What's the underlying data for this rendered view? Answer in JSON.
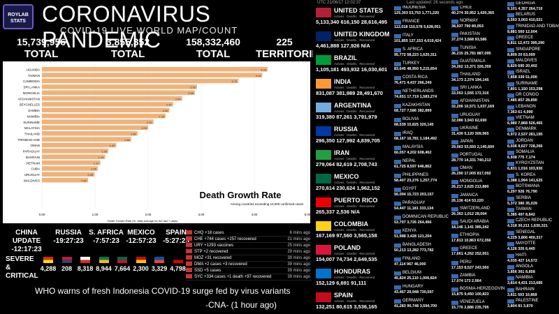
{
  "header": {
    "logo": "ROYLAB STATS",
    "title": "CORONAVIRUS PANDEMIC",
    "subtitle": "COVID-19 LIVE WORLD MAP/COUNT"
  },
  "stats": [
    {
      "value": "15,739,956",
      "label": "TOTAL ACTIVES"
    },
    {
      "value": "3,855,352",
      "label": "TOTAL DEATHS"
    },
    {
      "value": "158,332,460",
      "label": "TOTAL RECOVERED"
    },
    {
      "value": "225",
      "label": "TERRITORIES"
    }
  ],
  "chart_data": {
    "type": "bar",
    "title": "Death Growth Rate",
    "subtitle": "Among countries exceeding 10,000 confirmed cases",
    "xlabel": "Death Growth Rate (%, daily average for the last 7 days)",
    "xlim": [
      0,
      5
    ],
    "xticks": [
      "0.00",
      "1.00",
      "2.00",
      "3.00",
      "4.00",
      "5.00"
    ],
    "categories": [
      "UGANDA",
      "TAIWAN",
      "CAMBODIA",
      "SRI LANKA",
      "MONGOLIA",
      "AFGHANISTAN",
      "SEYCHELLES",
      "ZAMBIA",
      "NAMIBIA",
      "SURINAME",
      "MALAYSIA",
      "THAILAND",
      "TRINIDAD AND",
      "OMAN",
      "PARAGUAY",
      "BAHRAIN",
      "VIETNAM",
      "CUBA",
      "URUGUAY",
      "MALDIVES"
    ],
    "values": [
      4.25,
      4.15,
      3.7,
      2.92,
      2.88,
      2.64,
      2.47,
      2.4,
      2.33,
      2.1,
      2.0,
      1.8,
      1.68,
      1.4,
      1.25,
      1.19,
      1.1,
      1.05,
      0.99,
      0.87
    ],
    "colors": {
      "bar": "#f0b27a",
      "bg": "#ffffff",
      "text": "#000000"
    }
  },
  "updates": {
    "columns": [
      {
        "name": "CHINA UPDATE",
        "time": "-12:17:23"
      },
      {
        "name": "RUSSIA",
        "time": "-19:27:23"
      },
      {
        "name": "S. AFRICA",
        "time": "-7:57:23"
      },
      {
        "name": "MEXICO",
        "time": "-12:57:23"
      },
      {
        "name": "SPAIN",
        "time": "-5:27:23"
      }
    ],
    "critical_label": "SEVERE & CRITICAL",
    "critical_values": [
      "4,288",
      "208",
      "8,318",
      "8,944",
      "7,664",
      "2,300",
      "3,329",
      "4,798"
    ],
    "feed": [
      {
        "text": "CHQ +18 cases",
        "ago": "6 mins ago"
      },
      {
        "text": "CHE +744 cases +257 recovered",
        "ago": "21 mins ago"
      },
      {
        "text": "URY +1293 vaccines",
        "ago": "25 mins ago"
      },
      {
        "text": "STP +2 recovered",
        "ago": "29 mins ago"
      },
      {
        "text": "MOZ +31 recovered",
        "ago": "39 mins ago"
      },
      {
        "text": "DMA +2 cases +3 recovered",
        "ago": "39 mins ago"
      },
      {
        "text": "SSD +5 cases",
        "ago": "39 mins ago"
      },
      {
        "text": "SYC +334 cases +1 death +97 recovered",
        "ago": "39 mins ago"
      }
    ]
  },
  "news": {
    "headline": "WHO warns of fresh Indonesia COVID-19 surge fed by virus variants",
    "source": "-CNA- (1 hour ago)"
  },
  "right": {
    "updated": "UTC 21/06/17 12:02:37",
    "last_updated": "Last updated: 26 seconds ago",
    "subhead": {
      "a": "Actives",
      "d": "Deaths",
      "r": "Recovered"
    },
    "big": [
      {
        "name": "UNITED STATES",
        "a": "5,133,340",
        "d": "616,150",
        "r": "28,616,495",
        "flag": "us"
      },
      {
        "name": "UNITED KINGDOM",
        "a": "4,461,888",
        "d": "127,926",
        "r": "N/A",
        "flag": "uk"
      },
      {
        "name": "BRAZIL",
        "a": "1,105,181",
        "d": "493,932",
        "r": "16,030,601",
        "flag": "br"
      },
      {
        "name": "INDIA",
        "a": "831,087",
        "d": "381,989",
        "r": "28,491,670",
        "flag": "in"
      },
      {
        "name": "ARGENTINA",
        "a": "319,380",
        "d": "87,261",
        "r": "3,791,979",
        "flag": "ar"
      },
      {
        "name": "RUSSIA",
        "a": "296,350",
        "d": "127,992",
        "r": "4,839,705",
        "flag": "ru"
      },
      {
        "name": "IRAN",
        "a": "279,064",
        "d": "82,619",
        "r": "2,708,743",
        "flag": "ir"
      },
      {
        "name": "MEXICO",
        "a": "270,614",
        "d": "230,624",
        "r": "1,962,152",
        "flag": "mx"
      },
      {
        "name": "PUERTO RICO",
        "a": "265,337",
        "d": "2,536",
        "r": "N/A",
        "flag": "pr"
      },
      {
        "name": "COLOMBIA",
        "a": "167,169",
        "d": "97,560",
        "r": "3,565,158",
        "flag": "co"
      },
      {
        "name": "POLAND",
        "a": "154,007",
        "d": "74,734",
        "r": "2,649,535",
        "flag": "pl"
      },
      {
        "name": "HONDURAS",
        "a": "152,129",
        "d": "6,691",
        "r": "91,111",
        "flag": "hn"
      },
      {
        "name": "SPAIN",
        "a": "132,251",
        "d": "80,615",
        "r": "3,536,165",
        "flag": "es"
      }
    ],
    "mid": [
      {
        "name": "INDONESIA",
        "v": "125,303  53,753  1,771,220"
      },
      {
        "name": "FRANCE",
        "v": "112,018  110,578  5,628,051"
      },
      {
        "name": "ITALY",
        "v": "101,855  127,153  4,019,424"
      },
      {
        "name": "S. AFRICA",
        "v": "95,772  58,223  1,620,311"
      },
      {
        "name": "TURKEY",
        "v": "83,645  48,950  5,215,654"
      },
      {
        "name": "COSTA RICA",
        "v": "76,471  4,437  266,249"
      },
      {
        "name": "NETHERLANDS",
        "v": "74,651  17,719  1,583,274"
      },
      {
        "name": "KAZAKHSTAN",
        "v": "68,727  7,586  382,899"
      },
      {
        "name": "BOLIVIA",
        "v": "68,539  15,825  320,145"
      },
      {
        "name": "IRAQ",
        "v": "68,167  16,781  1,184,492"
      },
      {
        "name": "MALAYSIA",
        "v": "66,057  4,202  608,462"
      },
      {
        "name": "NEPAL",
        "v": "61,725  8,597  646,862"
      },
      {
        "name": "PHILIPPINES",
        "v": "58,407  23,276  1,257,774"
      },
      {
        "name": "EGYPT",
        "v": "56,094  15,723  203,157"
      },
      {
        "name": "PARAGUAY",
        "v": "54,447  11,181  333,134"
      },
      {
        "name": "DOMINICAN REPUBLIC",
        "v": "53,707  3,726  264,466"
      },
      {
        "name": "KENYA",
        "v": "51,988  3,428  121,204"
      },
      {
        "name": "BANGLADESH",
        "v": "50,213  13,282  773,782"
      },
      {
        "name": "FINLAND",
        "v": "47,114  967  46,000"
      },
      {
        "name": "BELGIUM",
        "v": "45,824  25,110  1,006,824"
      },
      {
        "name": "HUNGARY",
        "v": "43,467  29,948  730,597"
      },
      {
        "name": "GERMANY",
        "v": "41,283  90,748  3,594,700"
      }
    ],
    "small": [
      {
        "name": "CHILE",
        "v": "40,274  30,952  1,420,365"
      },
      {
        "name": "NORWAY",
        "v": "38,937  790  80,053"
      },
      {
        "name": "PAKISTAN",
        "v": "37,274  3,568  93,586"
      },
      {
        "name": "TUNISIA",
        "v": "36,215  25,781  887,095"
      },
      {
        "name": "GUATEMALA",
        "v": "34,262  13,371  326,359"
      },
      {
        "name": "THAILAND",
        "v": "34,173  2,374  194,145"
      },
      {
        "name": "SRI LANKA",
        "v": "33,053  1,555  172,316"
      },
      {
        "name": "AFGHANISTAN",
        "v": "32,206  10,571  1,037,169"
      },
      {
        "name": "URUGUAY",
        "v": "32,080  3,943  62,690"
      },
      {
        "name": "UKRAINE",
        "v": "31,430  5,120  309,965"
      },
      {
        "name": "JAPAN",
        "v": "29,063  53,550  2,145,600"
      },
      {
        "name": "PORTUGAL",
        "v": "28,770  14,331  740,213"
      },
      {
        "name": "OMAN",
        "v": "26,290  17,005  817,092"
      },
      {
        "name": "MONGOLIA",
        "v": "26,217  2,625  213,880"
      },
      {
        "name": "JAMAICA",
        "v": "26,136  414  53,220"
      },
      {
        "name": "SWITZERLAND",
        "v": "26,363  1,012  28,004"
      },
      {
        "name": "SAUDI ARABIA",
        "v": "18,146  1,141  385,242"
      },
      {
        "name": "ETHIOPIA",
        "v": "17,813  10,863  672,356"
      },
      {
        "name": "GREECE",
        "v": "17,661  4,262  252,651"
      },
      {
        "name": "PERU",
        "v": "17,153  8,527  243,560"
      },
      {
        "name": "ZAMBIA",
        "v": "17,074  173  2,964"
      },
      {
        "name": "BOSNIA-HERZEGOVINA",
        "v": "15,875  9,450  100,823"
      },
      {
        "name": "VENEZUELA",
        "v": "15,776  2,886  235,795"
      }
    ],
    "tiny": [
      {
        "name": "GEORGIA",
        "v": "9,101  4,357  264,710"
      },
      {
        "name": "BELARUS",
        "v": "8,593  3,003  410,021"
      },
      {
        "name": "TRINIDAD AND TOBAGO",
        "v": "8,881  560  12,004"
      },
      {
        "name": "GREECE",
        "v": "8,811  12,472  395,290"
      },
      {
        "name": "SINGAPORE",
        "v": "8,809  20  63,099"
      },
      {
        "name": "MALDIVES",
        "v": "8,820  695  20,402"
      },
      {
        "name": "ISRAEL",
        "v": "7,858  339  51,000"
      },
      {
        "name": "SURINAME",
        "v": "7,801  1,150  153,298"
      },
      {
        "name": "DR CONGO",
        "v": "7,485  857  28,890"
      },
      {
        "name": "LEBANON",
        "v": "7,363  61  4,990"
      },
      {
        "name": "VIETNAM",
        "v": "6,980  7,868  526,465"
      },
      {
        "name": "DENMARK",
        "v": "6,972  2,537  281,195"
      },
      {
        "name": "JORDAN",
        "v": "6,936  9,627  728,266"
      },
      {
        "name": "SOMALIA",
        "v": "6,938  775  7,174"
      },
      {
        "name": "KYRGYZSTAN",
        "v": "6,831  1,016  103,930"
      },
      {
        "name": "S. KOREA",
        "v": "6,388  1,994  141,625"
      },
      {
        "name": "BOTSWANA",
        "v": "6,297  926  76,790"
      },
      {
        "name": "SERBIA",
        "v": "5,372  380  35,029"
      },
      {
        "name": "TAIWAN",
        "v": "5,385  497  8,842"
      },
      {
        "name": "CZECH REPUBLIC",
        "v": "4,318  30,211  1,630,321"
      },
      {
        "name": "SENEGAL",
        "v": "4,229  3,806  400,317"
      },
      {
        "name": "MAYOTTE",
        "v": "4,126  326  6,445"
      },
      {
        "name": "HAITI",
        "v": "4,035  427  14,572"
      },
      {
        "name": "ANGOLA",
        "v": "3,856  361  8,858"
      },
      {
        "name": "NAMIBIA",
        "v": "3,814  4,431  213,685"
      },
      {
        "name": "BAHRAIN",
        "v": "3,811  593  10,868"
      },
      {
        "name": "PALESTINE",
        "v": "3,804  81  3,870"
      }
    ]
  }
}
